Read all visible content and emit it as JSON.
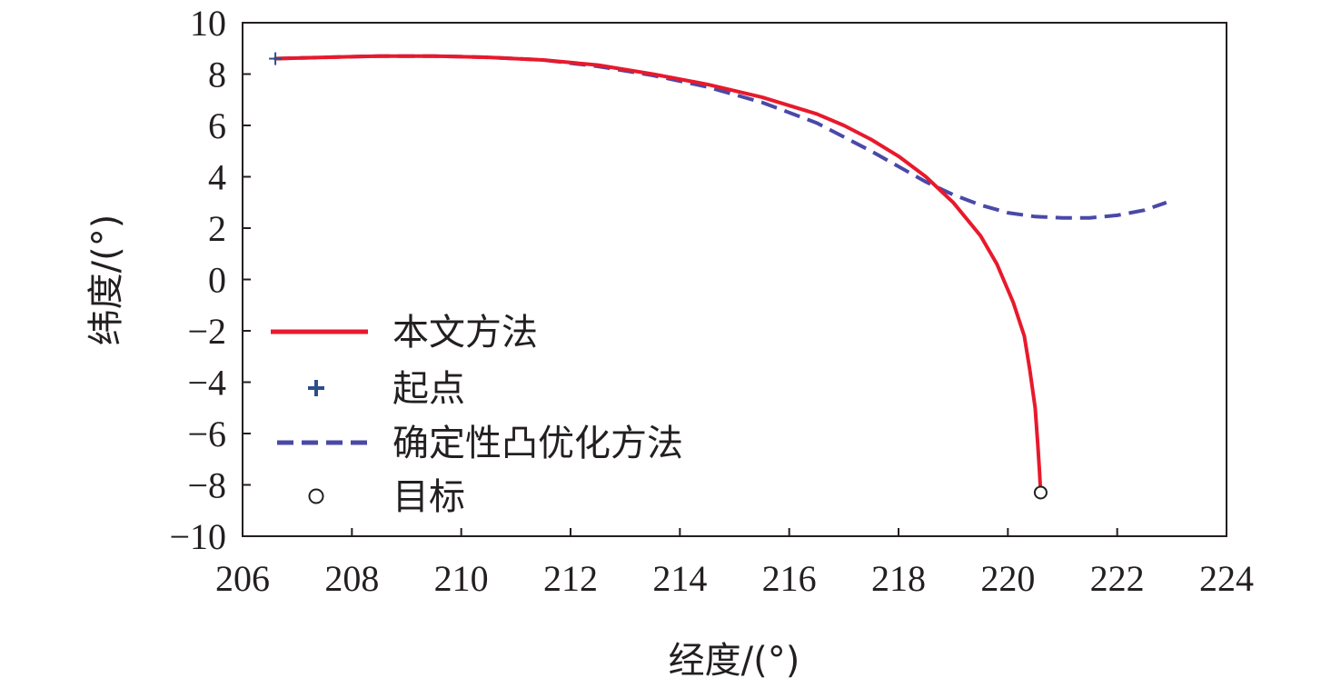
{
  "chart_data": {
    "type": "line",
    "xlabel": "经度/(°)",
    "ylabel": "纬度/(°)",
    "xlim": [
      206,
      224
    ],
    "ylim": [
      -10,
      10
    ],
    "x_ticks": [
      206,
      208,
      210,
      212,
      214,
      216,
      218,
      220,
      222,
      224
    ],
    "y_ticks": [
      10,
      8,
      6,
      4,
      2,
      0,
      -2,
      -4,
      -6,
      -8,
      -10
    ],
    "x_tick_labels": [
      "206",
      "208",
      "210",
      "212",
      "214",
      "216",
      "218",
      "220",
      "222",
      "224"
    ],
    "y_tick_labels": [
      "10",
      "8",
      "6",
      "4",
      "2",
      "0",
      "−2",
      "−4",
      "−6",
      "−8",
      "−10"
    ],
    "grid": false,
    "legend_position": "left",
    "series": [
      {
        "name": "本文方法",
        "style": "solid",
        "color": "#e8192c",
        "x": [
          206.6,
          207.5,
          208.5,
          209.5,
          210.5,
          211.5,
          212.5,
          213.5,
          214.5,
          215.5,
          216.5,
          217.0,
          217.5,
          218.0,
          218.5,
          219.0,
          219.5,
          219.8,
          220.1,
          220.3,
          220.4,
          220.5,
          220.55,
          220.58,
          220.6
        ],
        "y": [
          8.6,
          8.65,
          8.7,
          8.7,
          8.65,
          8.55,
          8.35,
          8.0,
          7.6,
          7.1,
          6.45,
          6.0,
          5.45,
          4.8,
          4.0,
          3.0,
          1.7,
          0.6,
          -0.9,
          -2.2,
          -3.5,
          -5.0,
          -6.5,
          -7.5,
          -8.3
        ]
      },
      {
        "name": "确定性凸优化方法",
        "style": "dashed",
        "color": "#4a49a8",
        "x": [
          206.6,
          207.5,
          208.5,
          209.5,
          210.5,
          211.5,
          212.5,
          213.5,
          214.5,
          215.5,
          216.5,
          217.5,
          218.5,
          219.0,
          219.5,
          220.0,
          220.5,
          221.0,
          221.5,
          222.0,
          222.5,
          222.9
        ],
        "y": [
          8.6,
          8.65,
          8.7,
          8.7,
          8.65,
          8.55,
          8.3,
          7.95,
          7.5,
          6.9,
          6.1,
          5.0,
          3.8,
          3.3,
          2.9,
          2.6,
          2.45,
          2.4,
          2.4,
          2.5,
          2.7,
          3.0
        ]
      }
    ],
    "markers": [
      {
        "name": "起点",
        "symbol": "plus",
        "color": "#2b4f8a",
        "x": 206.6,
        "y": 8.6
      },
      {
        "name": "目标",
        "symbol": "circle",
        "color": "#231f20",
        "x": 220.6,
        "y": -8.3
      }
    ],
    "legend": [
      {
        "label": "本文方法",
        "kind": "solid-line",
        "color": "#e8192c"
      },
      {
        "label": "起点",
        "kind": "plus-marker",
        "color": "#2b4f8a"
      },
      {
        "label": "确定性凸优化方法",
        "kind": "dashed-line",
        "color": "#4a49a8"
      },
      {
        "label": "目标",
        "kind": "circle-marker",
        "color": "#231f20"
      }
    ]
  }
}
